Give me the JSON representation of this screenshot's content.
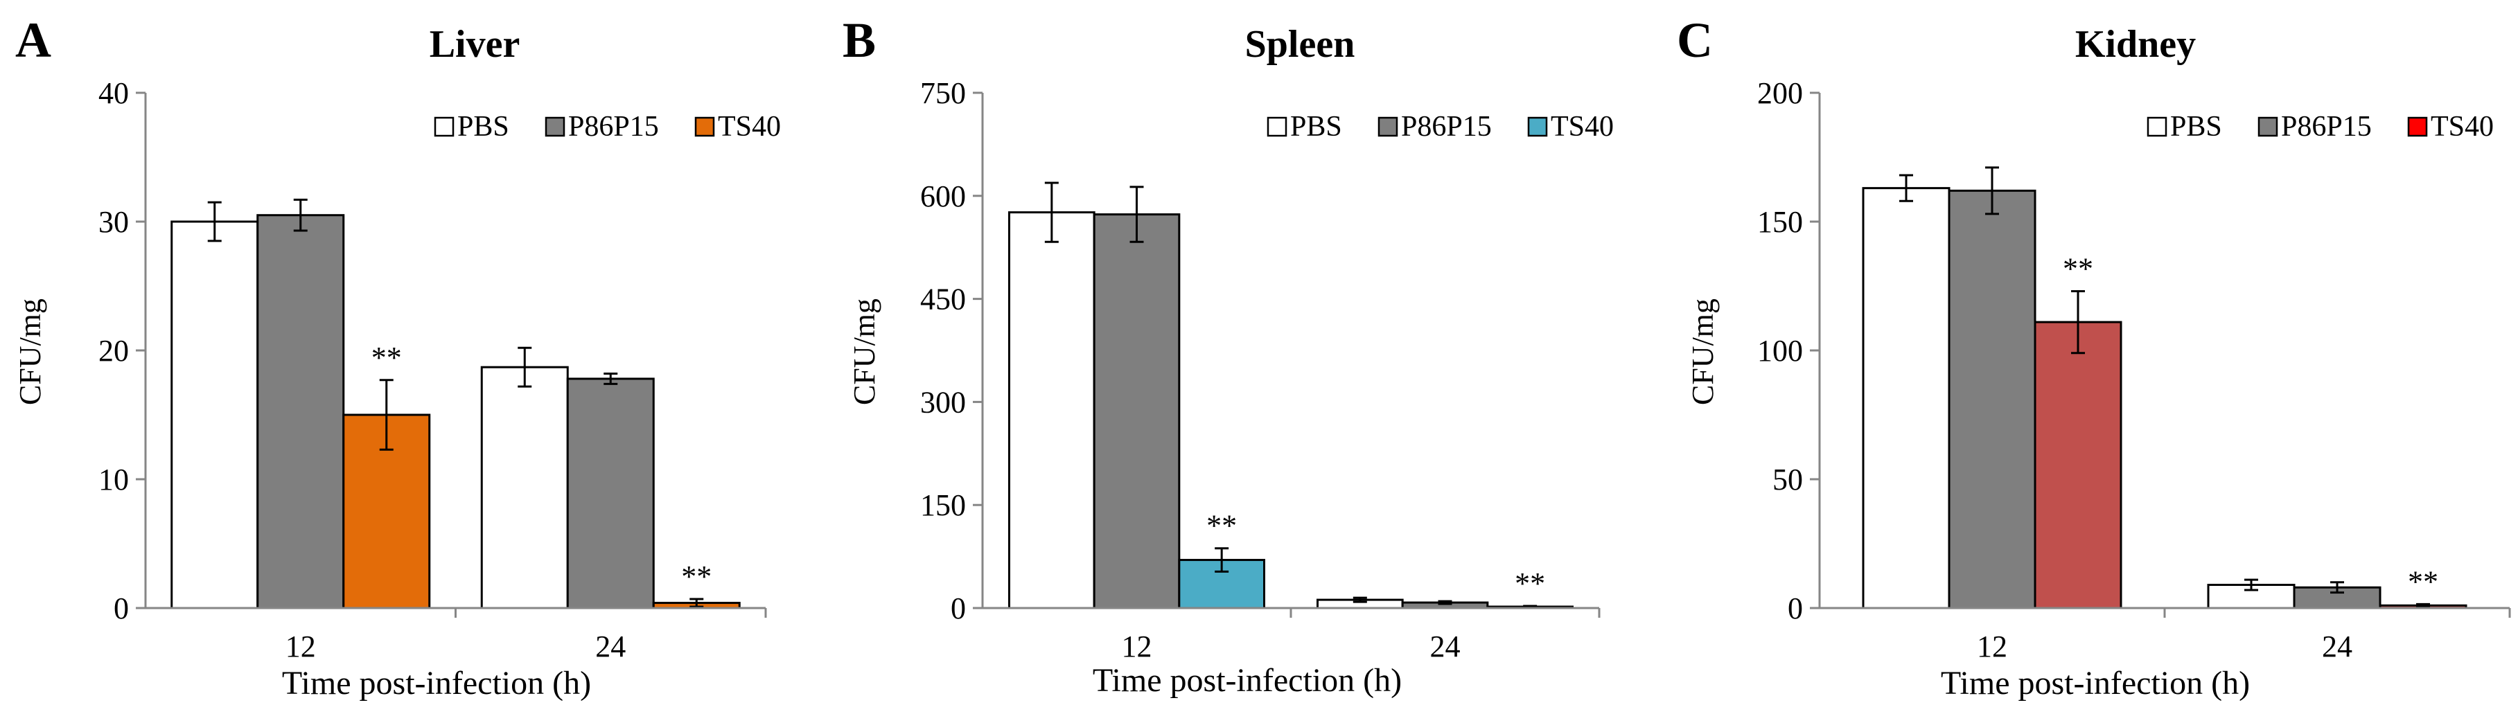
{
  "chart_data": [
    {
      "panel": "A",
      "type": "bar",
      "title": "Liver",
      "xlabel": "Time post-infection  (h)",
      "ylabel": "CFU/mg",
      "categories": [
        "12",
        "24"
      ],
      "ylim": [
        0,
        40
      ],
      "yticks": [
        "0",
        "10",
        "20",
        "30",
        "40"
      ],
      "series": [
        {
          "name": "PBS",
          "color": "#ffffff",
          "values": [
            30.0,
            18.7
          ],
          "errors": [
            1.5,
            1.5
          ]
        },
        {
          "name": "P86P15",
          "color": "#7f7f7f",
          "values": [
            30.5,
            17.8
          ],
          "errors": [
            1.2,
            0.4
          ]
        },
        {
          "name": "TS40",
          "color": "#e36c09",
          "values": [
            15.0,
            0.4
          ],
          "errors": [
            2.7,
            0.3
          ]
        }
      ],
      "annotations": [
        {
          "category": "12",
          "series": "TS40",
          "text": "**"
        },
        {
          "category": "24",
          "series": "TS40",
          "text": "**"
        }
      ],
      "legend": "top-right",
      "grid": false
    },
    {
      "panel": "B",
      "type": "bar",
      "title": "Spleen",
      "xlabel": "Time post-infection  (h)",
      "ylabel": "CFU/mg",
      "categories": [
        "12",
        "24"
      ],
      "ylim": [
        0,
        750
      ],
      "yticks": [
        "0",
        "150",
        "300",
        "450",
        "600",
        "750"
      ],
      "series": [
        {
          "name": "PBS",
          "color": "#ffffff",
          "values": [
            576,
            12
          ],
          "errors": [
            43,
            3
          ]
        },
        {
          "name": "P86P15",
          "color": "#7f7f7f",
          "values": [
            573,
            8
          ],
          "errors": [
            40,
            2
          ]
        },
        {
          "name": "TS40",
          "color": "#4bacc6",
          "values": [
            70,
            2
          ],
          "errors": [
            17,
            1
          ]
        }
      ],
      "annotations": [
        {
          "category": "12",
          "series": "TS40",
          "text": "**"
        },
        {
          "category": "24",
          "series": "TS40",
          "text": "**"
        }
      ],
      "legend": "top-right",
      "grid": false
    },
    {
      "panel": "C",
      "type": "bar",
      "title": "Kidney",
      "xlabel": "Time post-infection  (h)",
      "ylabel": "CFU/mg",
      "categories": [
        "12",
        "24"
      ],
      "ylim": [
        0,
        200
      ],
      "yticks": [
        "0",
        "50",
        "100",
        "150",
        "200"
      ],
      "series": [
        {
          "name": "PBS",
          "color": "#ffffff",
          "values": [
            163,
            9
          ],
          "errors": [
            5,
            2
          ]
        },
        {
          "name": "P86P15",
          "color": "#7f7f7f",
          "values": [
            162,
            8
          ],
          "errors": [
            9,
            2
          ]
        },
        {
          "name": "TS40",
          "color": "#c0504d",
          "values": [
            111,
            1
          ],
          "errors": [
            12,
            0.5
          ]
        }
      ],
      "legend_colors": [
        "#ffffff",
        "#7f7f7f",
        "#ff0000"
      ],
      "annotations": [
        {
          "category": "12",
          "series": "TS40",
          "text": "**"
        },
        {
          "category": "24",
          "series": "TS40",
          "text": "**"
        }
      ],
      "legend": "top-right",
      "grid": false
    }
  ]
}
